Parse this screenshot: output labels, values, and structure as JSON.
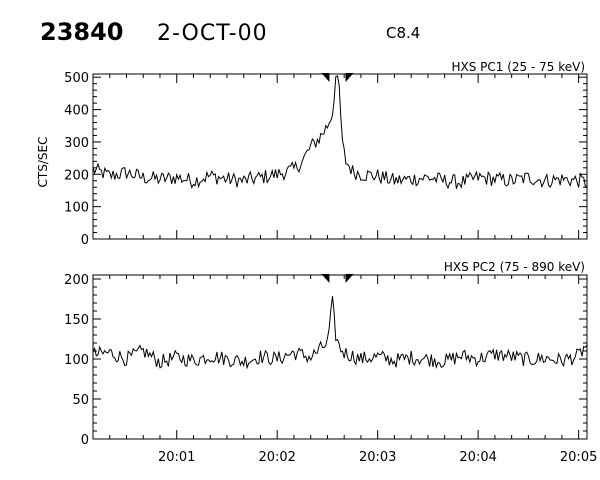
{
  "header": {
    "event_id": "23840",
    "date": "2-OCT-00",
    "goes_class": "C8.4"
  },
  "chart_data": [
    {
      "type": "line",
      "title": "HXS PC1 (25 - 75 keV)",
      "xlabel": "",
      "ylabel": "CTS/SEC",
      "ylim": [
        0,
        510
      ],
      "yticks": [
        0,
        100,
        200,
        300,
        400,
        500
      ],
      "xlim": [
        "20:00:10",
        "20:05:05"
      ],
      "xticks": [
        "20:01",
        "20:02",
        "20:03",
        "20:04",
        "20:05"
      ],
      "markers_x": [
        "20:02:30",
        "20:02:42"
      ],
      "series": [
        {
          "x": [
            "20:00:10",
            "20:00:20",
            "20:00:30",
            "20:00:40",
            "20:00:50",
            "20:01:00",
            "20:01:10",
            "20:01:20",
            "20:01:30",
            "20:01:40",
            "20:01:50",
            "20:02:00",
            "20:02:10",
            "20:02:15",
            "20:02:20",
            "20:02:25",
            "20:02:30",
            "20:02:33",
            "20:02:35",
            "20:02:37",
            "20:02:39",
            "20:02:41",
            "20:02:45",
            "20:02:50",
            "20:03:00",
            "20:03:10",
            "20:03:20",
            "20:03:30",
            "20:03:40",
            "20:03:50",
            "20:04:00",
            "20:04:10",
            "20:04:20",
            "20:04:30",
            "20:04:40",
            "20:04:50",
            "20:05:00",
            "20:05:05"
          ],
          "values": [
            215,
            195,
            205,
            190,
            185,
            190,
            180,
            195,
            185,
            180,
            190,
            200,
            215,
            240,
            285,
            310,
            350,
            390,
            500,
            465,
            290,
            240,
            210,
            200,
            195,
            180,
            185,
            190,
            180,
            175,
            190,
            185,
            180,
            190,
            180,
            185,
            180,
            175
          ]
        }
      ]
    },
    {
      "type": "line",
      "title": "HXS PC2 (75 - 890 keV)",
      "xlabel": "",
      "ylabel": "",
      "ylim": [
        0,
        205
      ],
      "yticks": [
        0,
        50,
        100,
        150,
        200
      ],
      "xlim": [
        "20:00:10",
        "20:05:05"
      ],
      "xticks": [
        "20:01",
        "20:02",
        "20:03",
        "20:04",
        "20:05"
      ],
      "markers_x": [
        "20:02:30",
        "20:02:42"
      ],
      "series": [
        {
          "x": [
            "20:00:10",
            "20:00:20",
            "20:00:30",
            "20:00:40",
            "20:00:50",
            "20:01:00",
            "20:01:10",
            "20:01:20",
            "20:01:30",
            "20:01:40",
            "20:01:50",
            "20:02:00",
            "20:02:10",
            "20:02:20",
            "20:02:30",
            "20:02:33",
            "20:02:35",
            "20:02:37",
            "20:02:40",
            "20:02:50",
            "20:03:00",
            "20:03:10",
            "20:03:20",
            "20:03:30",
            "20:03:40",
            "20:03:50",
            "20:04:00",
            "20:04:10",
            "20:04:20",
            "20:04:30",
            "20:04:40",
            "20:04:50",
            "20:05:00",
            "20:05:05"
          ],
          "values": [
            105,
            108,
            100,
            110,
            96,
            102,
            98,
            104,
            100,
            97,
            103,
            100,
            108,
            102,
            120,
            170,
            130,
            115,
            108,
            100,
            103,
            98,
            102,
            100,
            97,
            104,
            100,
            106,
            103,
            99,
            101,
            98,
            104,
            118
          ]
        }
      ]
    }
  ]
}
